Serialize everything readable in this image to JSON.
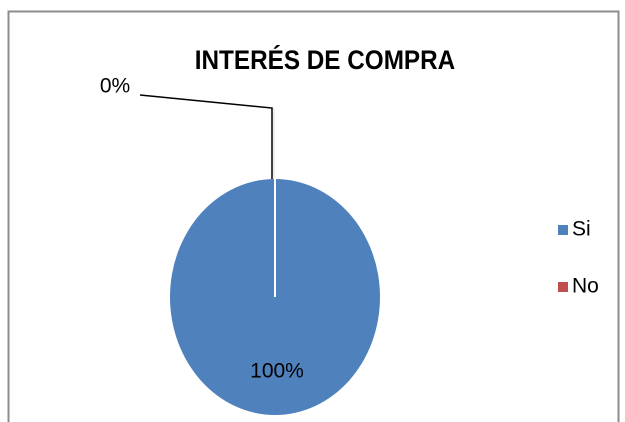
{
  "chart_data": {
    "type": "pie",
    "title": "INTERÉS DE COMPRA",
    "categories": [
      "Si",
      "No"
    ],
    "values": [
      100,
      0
    ],
    "value_labels": [
      "100%",
      "0%"
    ],
    "colors": [
      "#4f81bd",
      "#c0504d"
    ],
    "legend": "right"
  }
}
